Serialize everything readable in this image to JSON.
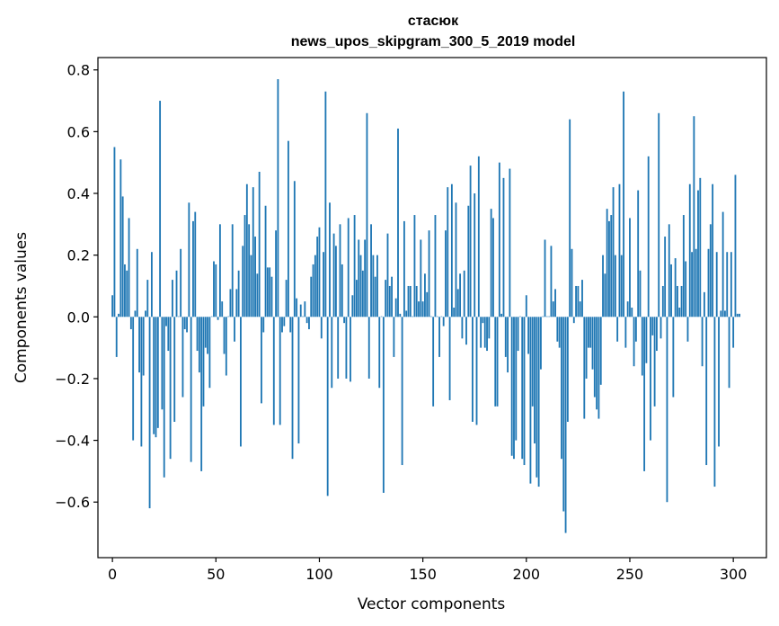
{
  "chart_data": {
    "type": "bar",
    "title": "стасюк",
    "subtitle": "news_upos_skipgram_300_5_2019 model",
    "xlabel": "Vector components",
    "ylabel": "Components values",
    "xlim": [
      -7,
      316
    ],
    "ylim": [
      -0.78,
      0.84
    ],
    "xticks": [
      0,
      50,
      100,
      150,
      200,
      250,
      300
    ],
    "yticks": [
      -0.6,
      -0.4,
      -0.2,
      0.0,
      0.2,
      0.4,
      0.6,
      0.8
    ],
    "xtick_labels": [
      "0",
      "50",
      "100",
      "150",
      "200",
      "250",
      "300"
    ],
    "ytick_labels": [
      "−0.6",
      "−0.4",
      "−0.2",
      "0.0",
      "0.2",
      "0.4",
      "0.6",
      "0.8"
    ],
    "bar_color": "#1f77b4",
    "values": [
      0.07,
      0.55,
      -0.13,
      0.01,
      0.51,
      0.39,
      0.17,
      0.15,
      0.32,
      -0.04,
      -0.4,
      0.02,
      0.22,
      -0.18,
      -0.42,
      -0.19,
      0.02,
      0.12,
      -0.62,
      0.21,
      -0.38,
      -0.39,
      -0.36,
      0.7,
      -0.3,
      -0.52,
      -0.03,
      -0.11,
      -0.46,
      0.12,
      -0.34,
      0.15,
      0.0,
      0.22,
      -0.26,
      -0.04,
      -0.05,
      0.37,
      -0.47,
      0.31,
      0.34,
      -0.11,
      -0.18,
      -0.5,
      -0.29,
      -0.1,
      -0.12,
      -0.23,
      0.0,
      0.18,
      0.17,
      -0.01,
      0.3,
      0.05,
      -0.12,
      -0.19,
      0.0,
      0.09,
      0.3,
      -0.08,
      0.09,
      0.15,
      -0.42,
      0.23,
      0.33,
      0.43,
      0.3,
      0.2,
      0.42,
      0.26,
      0.14,
      0.47,
      -0.28,
      -0.05,
      0.36,
      0.16,
      0.16,
      0.13,
      -0.35,
      0.28,
      0.77,
      -0.35,
      -0.05,
      -0.03,
      0.12,
      0.57,
      -0.05,
      -0.46,
      0.44,
      0.06,
      -0.41,
      0.04,
      0.0,
      0.05,
      -0.02,
      -0.04,
      0.13,
      0.17,
      0.2,
      0.26,
      0.29,
      -0.07,
      0.21,
      0.73,
      -0.58,
      0.37,
      -0.23,
      0.27,
      0.23,
      -0.2,
      0.3,
      0.17,
      -0.02,
      -0.2,
      0.32,
      -0.21,
      0.07,
      0.33,
      0.12,
      0.25,
      0.2,
      0.15,
      0.25,
      0.66,
      -0.2,
      0.3,
      0.2,
      0.13,
      0.2,
      -0.23,
      0.0,
      -0.57,
      0.12,
      0.27,
      0.1,
      0.13,
      -0.13,
      0.06,
      0.61,
      0.01,
      -0.48,
      0.31,
      0.02,
      0.1,
      0.1,
      0.0,
      0.33,
      0.1,
      0.05,
      0.25,
      0.05,
      0.14,
      0.08,
      0.28,
      0.0,
      -0.29,
      0.33,
      0.0,
      -0.13,
      0.0,
      -0.03,
      0.28,
      0.42,
      -0.27,
      0.43,
      0.03,
      0.37,
      0.09,
      0.14,
      -0.07,
      0.15,
      -0.09,
      0.36,
      0.49,
      -0.34,
      0.4,
      -0.35,
      0.52,
      -0.1,
      -0.02,
      -0.1,
      -0.11,
      -0.07,
      0.35,
      0.32,
      -0.29,
      -0.29,
      0.5,
      0.01,
      0.45,
      -0.13,
      -0.18,
      0.48,
      -0.45,
      -0.46,
      -0.4,
      -0.11,
      0.0,
      -0.46,
      -0.48,
      0.07,
      -0.12,
      -0.54,
      -0.29,
      -0.41,
      -0.52,
      -0.55,
      -0.17,
      0.0,
      0.25,
      0.0,
      0.0,
      0.23,
      0.05,
      0.09,
      -0.08,
      -0.1,
      -0.46,
      -0.63,
      -0.7,
      -0.34,
      0.64,
      0.22,
      -0.02,
      0.1,
      0.1,
      0.05,
      0.12,
      -0.33,
      -0.2,
      -0.1,
      -0.1,
      -0.17,
      -0.26,
      -0.3,
      -0.33,
      -0.22,
      0.2,
      0.14,
      0.35,
      0.31,
      0.33,
      0.42,
      0.2,
      -0.08,
      0.43,
      0.2,
      0.73,
      -0.1,
      0.05,
      0.32,
      0.03,
      -0.16,
      -0.08,
      0.41,
      0.15,
      -0.19,
      -0.5,
      -0.15,
      0.52,
      -0.4,
      -0.06,
      -0.29,
      -0.11,
      0.66,
      -0.07,
      0.1,
      0.26,
      -0.6,
      0.3,
      0.17,
      -0.26,
      0.19,
      0.1,
      0.03,
      0.1,
      0.33,
      0.18,
      -0.08,
      0.43,
      0.21,
      0.65,
      0.22,
      0.41,
      0.45,
      -0.16,
      0.08,
      -0.48,
      0.22,
      0.3,
      0.43,
      -0.55,
      0.21,
      -0.42,
      0.02,
      0.34,
      0.02,
      0.21,
      -0.23,
      0.21,
      -0.1,
      0.46,
      0.01,
      0.01
    ]
  }
}
